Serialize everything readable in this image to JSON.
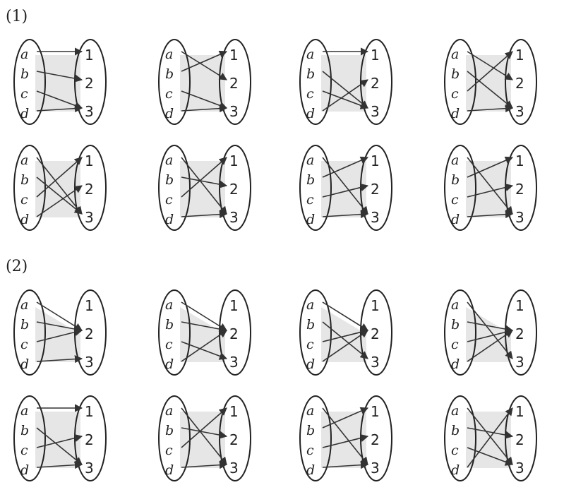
{
  "section_labels": [
    "(1)",
    "(2)"
  ],
  "domain_elements": [
    "a",
    "b",
    "c",
    "d"
  ],
  "codomain_elements": [
    "1",
    "2",
    "3"
  ],
  "sections": [
    {
      "label": "(1)",
      "diagrams": [
        {
          "mapping": {
            "a": "1",
            "b": "2",
            "c": "3",
            "d": "3"
          }
        },
        {
          "mapping": {
            "a": "2",
            "b": "1",
            "c": "3",
            "d": "3"
          }
        },
        {
          "mapping": {
            "a": "1",
            "b": "3",
            "c": "3",
            "d": "2"
          }
        },
        {
          "mapping": {
            "a": "2",
            "b": "3",
            "c": "1",
            "d": "3"
          }
        },
        {
          "mapping": {
            "a": "3",
            "b": "3",
            "c": "1",
            "d": "2"
          }
        },
        {
          "mapping": {
            "a": "3",
            "b": "2",
            "c": "1",
            "d": "3"
          }
        },
        {
          "mapping": {
            "a": "3",
            "b": "1",
            "c": "2",
            "d": "3"
          }
        },
        {
          "mapping": {
            "a": "3",
            "b": "1",
            "c": "2",
            "d": "3"
          }
        }
      ]
    },
    {
      "label": "(2)",
      "diagrams": [
        {
          "mapping": {
            "a": "2",
            "b": "2",
            "c": "2",
            "d": "3"
          }
        },
        {
          "mapping": {
            "a": "2",
            "b": "2",
            "c": "3",
            "d": "2"
          }
        },
        {
          "mapping": {
            "a": "2",
            "b": "3",
            "c": "2",
            "d": "2"
          }
        },
        {
          "mapping": {
            "a": "3",
            "b": "2",
            "c": "2",
            "d": "2"
          }
        },
        {
          "mapping": {
            "a": "1",
            "b": "3",
            "c": "2",
            "d": "3"
          }
        },
        {
          "mapping": {
            "a": "3",
            "b": "2",
            "c": "1",
            "d": "3"
          }
        },
        {
          "mapping": {
            "a": "3",
            "b": "1",
            "c": "2",
            "d": "3"
          }
        },
        {
          "mapping": {
            "a": "3",
            "b": "2",
            "c": "3",
            "d": "1"
          }
        }
      ]
    }
  ]
}
